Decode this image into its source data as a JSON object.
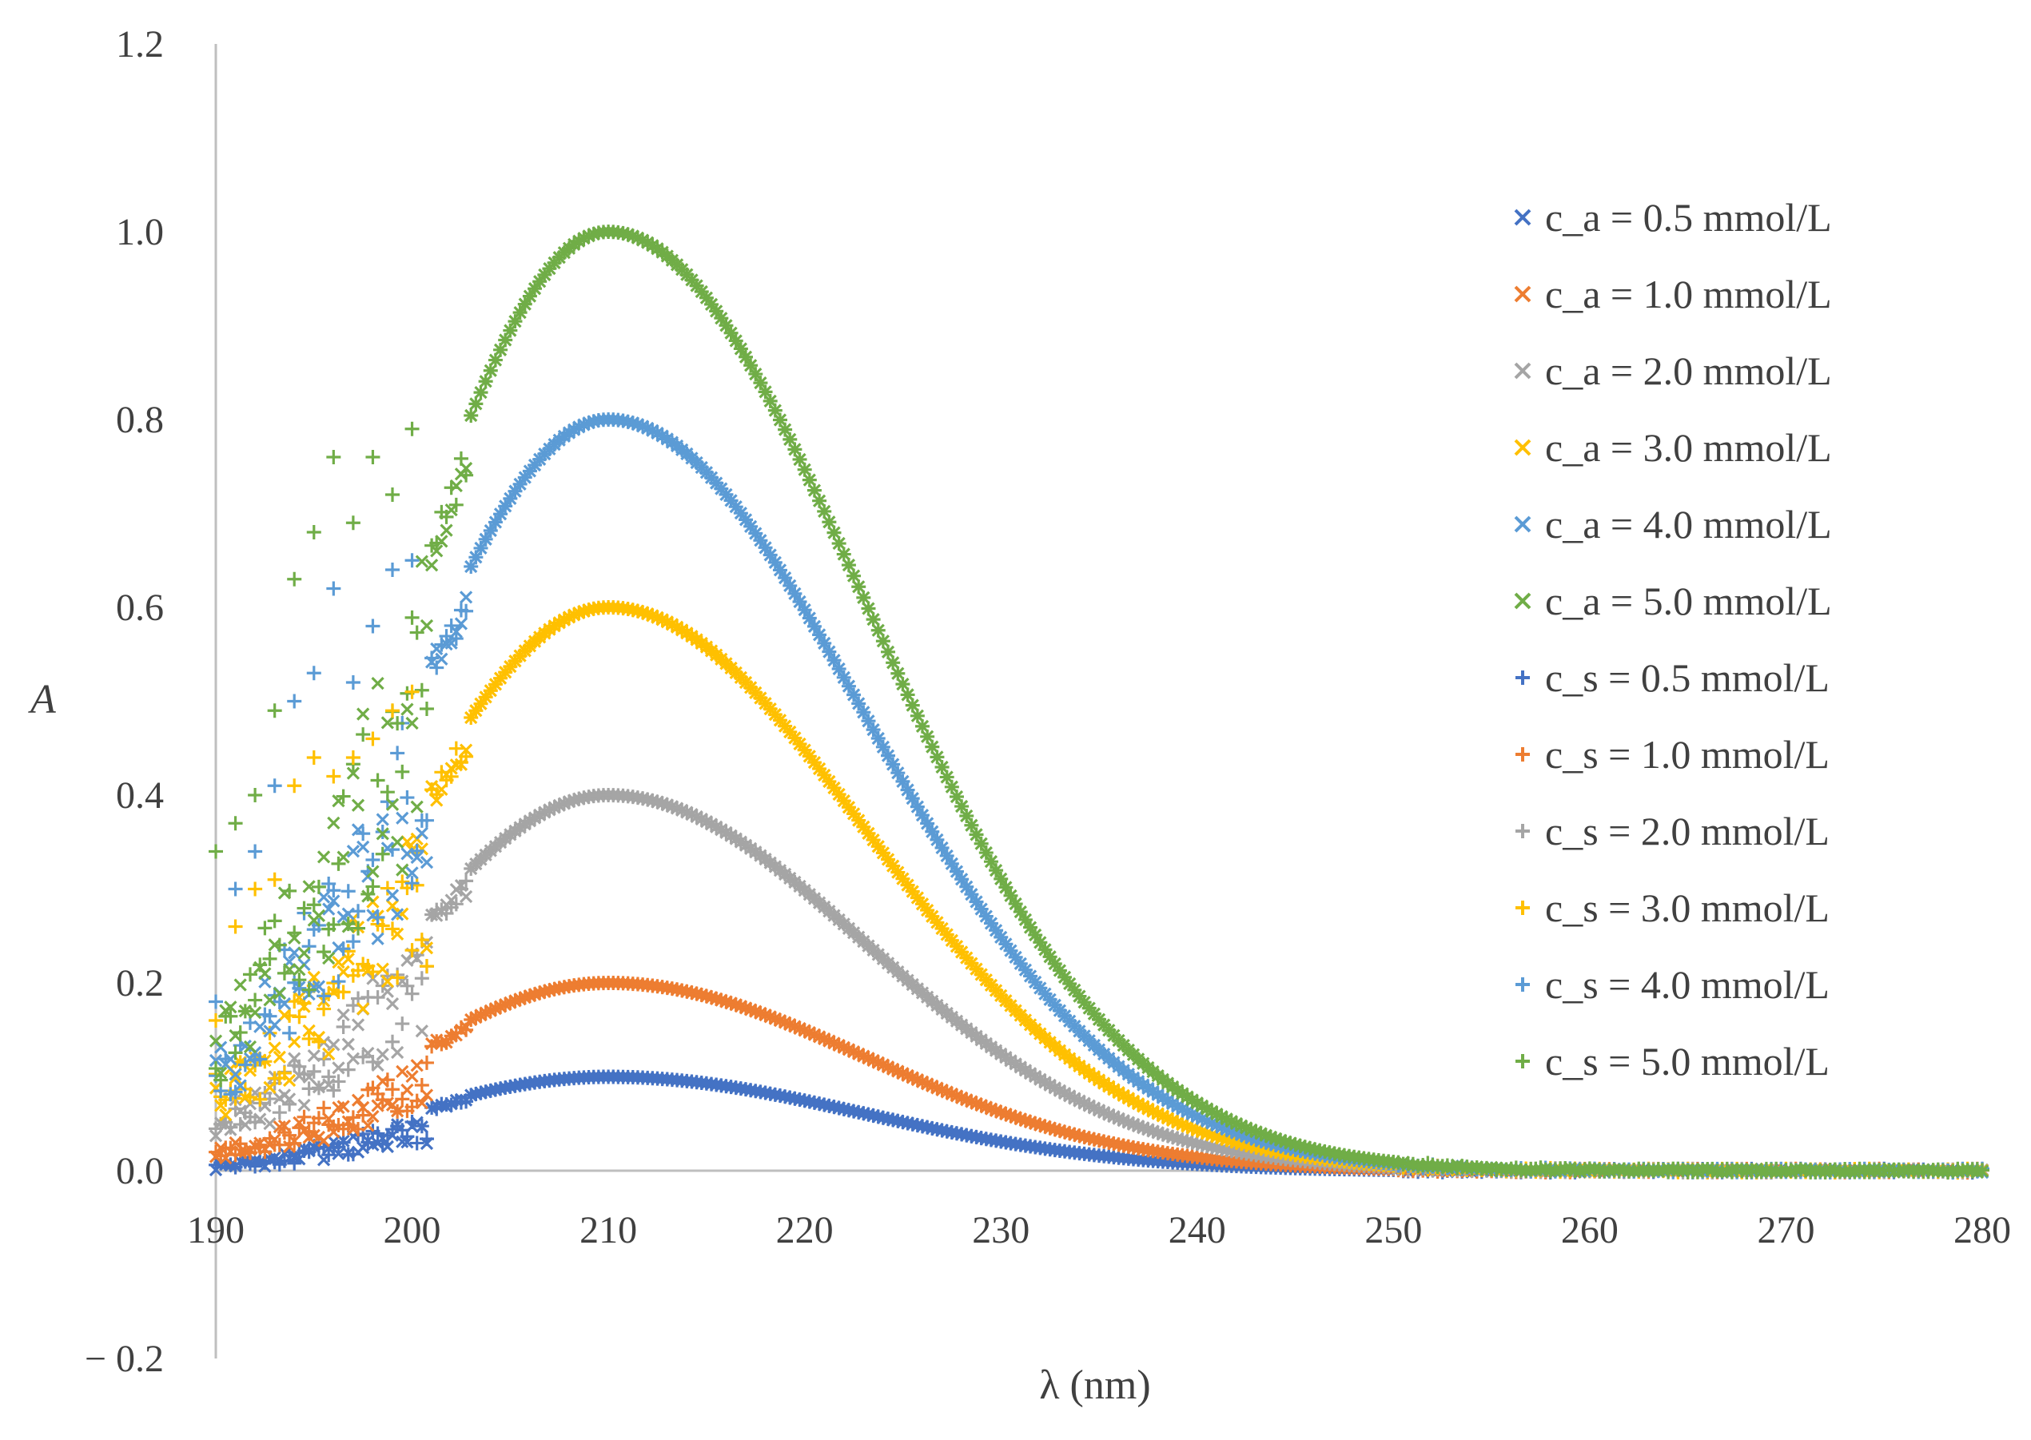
{
  "chart_data": {
    "type": "scatter",
    "title": "",
    "xlabel": "λ (nm)",
    "ylabel": "A",
    "xlim": [
      190,
      280
    ],
    "ylim": [
      -0.2,
      1.2
    ],
    "xticks": [
      190,
      200,
      210,
      220,
      230,
      240,
      250,
      260,
      270,
      280
    ],
    "yticks": [
      -0.2,
      0.0,
      0.2,
      0.4,
      0.6,
      0.8,
      1.0,
      1.2
    ],
    "ytick_labels": [
      "− 0.2",
      "0.0",
      "0.2",
      "0.4",
      "0.6",
      "0.8",
      "1.0",
      "1.2"
    ],
    "grid": false,
    "legend_position": "right",
    "x_sampling": {
      "start": 190,
      "end": 280,
      "step": 0.25
    },
    "peak_wavelength_nm": 210,
    "series": [
      {
        "name": "c_a = 0.5 mmol/L",
        "marker": "x",
        "color": "#4472C4",
        "peak_absorbance": 0.1
      },
      {
        "name": "c_a = 1.0 mmol/L",
        "marker": "x",
        "color": "#ED7D31",
        "peak_absorbance": 0.2
      },
      {
        "name": "c_a = 2.0 mmol/L",
        "marker": "x",
        "color": "#A5A5A5",
        "peak_absorbance": 0.4
      },
      {
        "name": "c_a = 3.0 mmol/L",
        "marker": "x",
        "color": "#FFC000",
        "peak_absorbance": 0.6
      },
      {
        "name": "c_a = 4.0 mmol/L",
        "marker": "x",
        "color": "#5B9BD5",
        "peak_absorbance": 0.8
      },
      {
        "name": "c_a = 5.0 mmol/L",
        "marker": "x",
        "color": "#70AD47",
        "peak_absorbance": 1.0
      },
      {
        "name": "c_s = 0.5 mmol/L",
        "marker": "+",
        "color": "#4472C4",
        "peak_absorbance": 0.1
      },
      {
        "name": "c_s = 1.0 mmol/L",
        "marker": "+",
        "color": "#ED7D31",
        "peak_absorbance": 0.2
      },
      {
        "name": "c_s = 2.0 mmol/L",
        "marker": "+",
        "color": "#A5A5A5",
        "peak_absorbance": 0.4
      },
      {
        "name": "c_s = 3.0 mmol/L",
        "marker": "+",
        "color": "#FFC000",
        "peak_absorbance": 0.6
      },
      {
        "name": "c_s = 4.0 mmol/L",
        "marker": "+",
        "color": "#5B9BD5",
        "peak_absorbance": 0.8
      },
      {
        "name": "c_s = 5.0 mmol/L",
        "marker": "+",
        "color": "#70AD47",
        "peak_absorbance": 1.0
      }
    ],
    "low_wavelength_scatter_values": [
      {
        "series": "c_s = 5.0 mmol/L",
        "x": [
          190,
          191,
          192,
          193,
          194,
          195,
          196,
          197,
          198,
          199,
          200
        ],
        "y": [
          0.34,
          0.37,
          0.4,
          0.49,
          0.63,
          0.68,
          0.76,
          0.69,
          0.76,
          0.72,
          0.79
        ]
      },
      {
        "series": "c_s = 4.0 mmol/L",
        "x": [
          190,
          191,
          192,
          193,
          194,
          195,
          196,
          197,
          198,
          199,
          200
        ],
        "y": [
          0.18,
          0.3,
          0.34,
          0.41,
          0.5,
          0.53,
          0.62,
          0.52,
          0.58,
          0.64,
          0.65
        ]
      },
      {
        "series": "c_s = 3.0 mmol/L",
        "x": [
          190,
          191,
          192,
          193,
          194,
          195,
          196,
          197,
          198,
          199,
          200
        ],
        "y": [
          0.16,
          0.26,
          0.3,
          0.31,
          0.41,
          0.44,
          0.42,
          0.44,
          0.46,
          0.49,
          0.51
        ]
      }
    ],
    "axis_color": "#BFBFBF"
  }
}
